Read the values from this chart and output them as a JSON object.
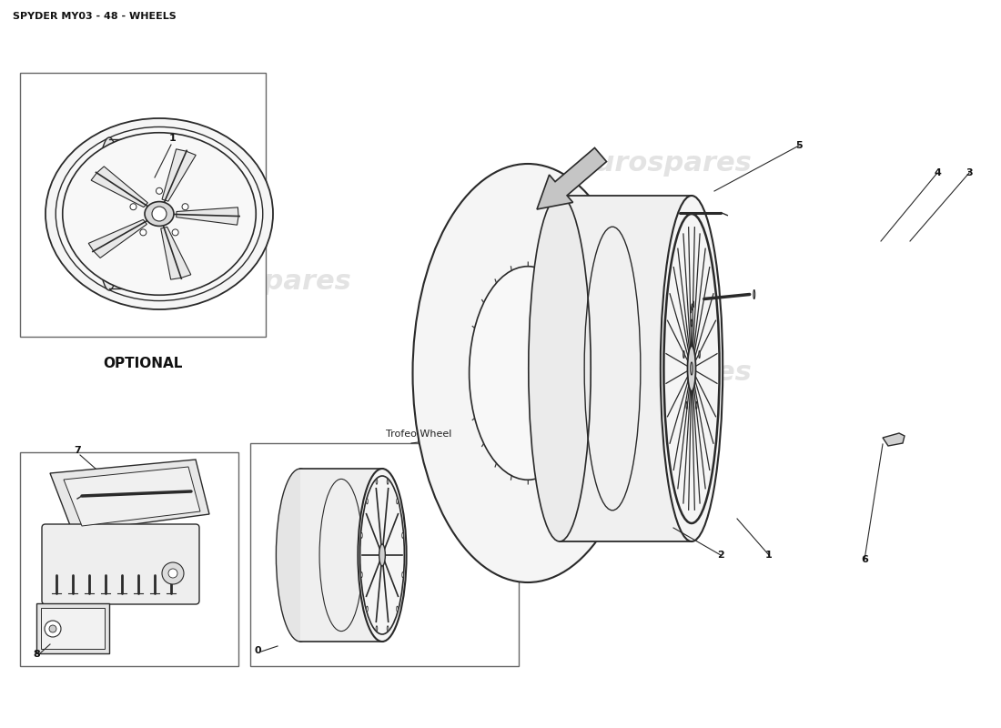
{
  "title": "SPYDER MY03 - 48 - WHEELS",
  "title_fontsize": 8,
  "background_color": "#ffffff",
  "watermark": "eurospares",
  "watermark_color": "#c8c8c8",
  "label_optional": "OPTIONAL",
  "label_trofeo": "Trofeo Wheel",
  "line_color": "#2a2a2a",
  "box_line_color": "#666666",
  "spoke_color": "#1a1a1a",
  "fill_light": "#f0f0f0",
  "fill_mid": "#e0e0e0",
  "fill_dark": "#cccccc"
}
